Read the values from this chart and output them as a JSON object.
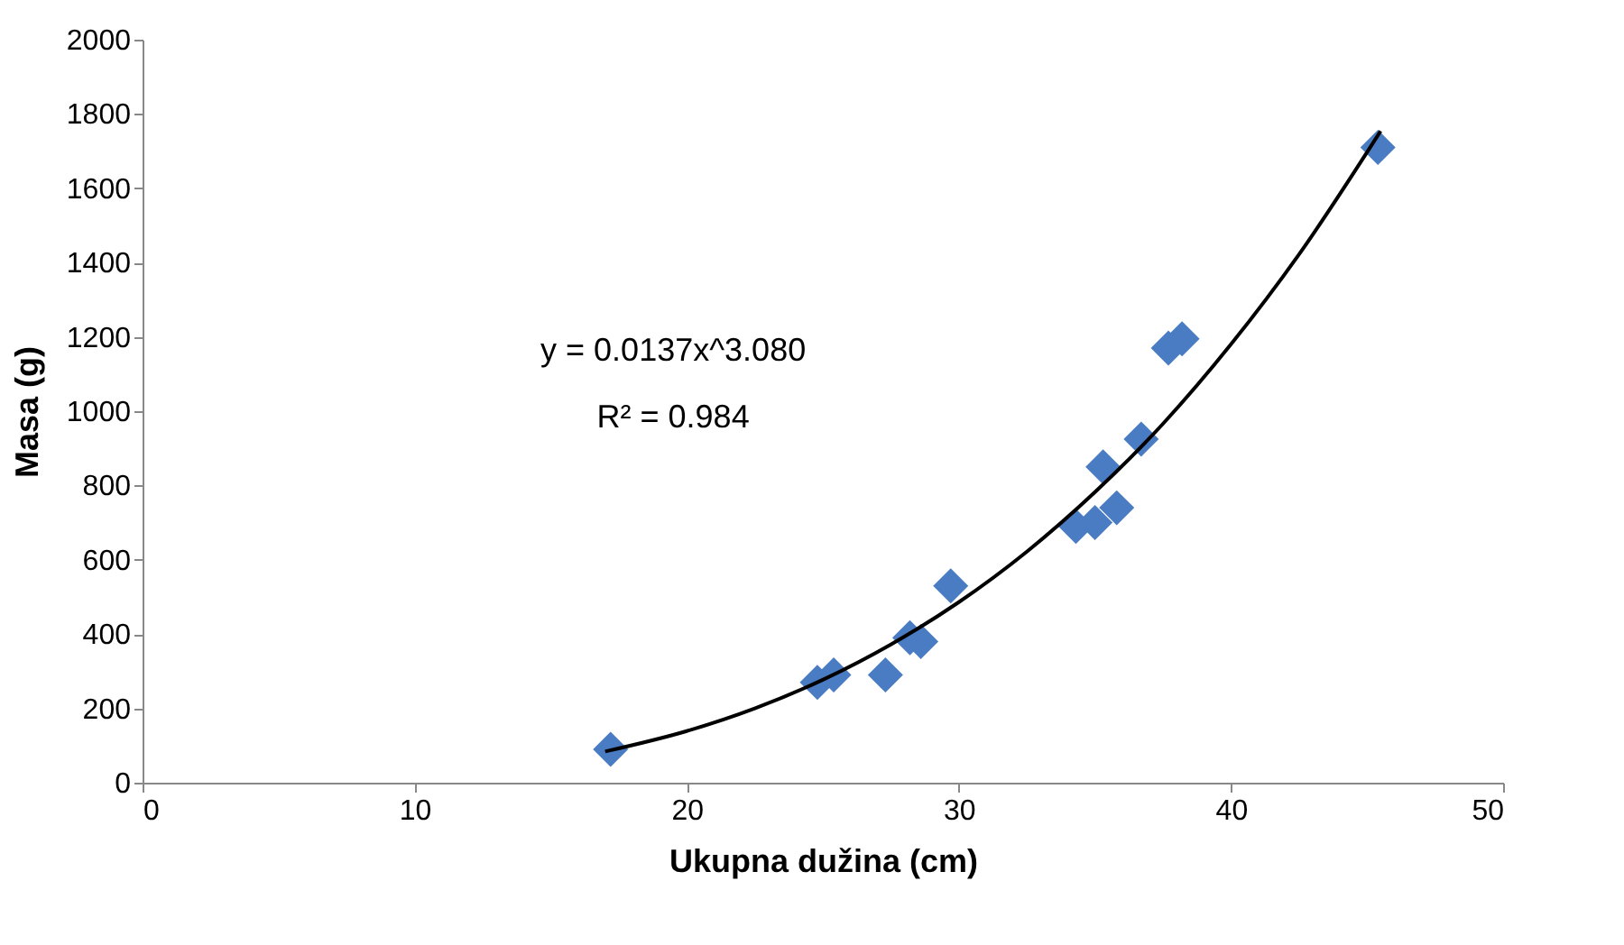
{
  "chart_data": {
    "type": "scatter",
    "xlabel": "Ukupna dužina (cm)",
    "ylabel": "Masa (g)",
    "xlim": [
      0,
      50
    ],
    "xticks": [
      0,
      10,
      20,
      30,
      40,
      50
    ],
    "ylim": [
      0,
      2000
    ],
    "yticks": [
      0,
      200,
      400,
      600,
      800,
      1000,
      1200,
      1400,
      1600,
      1800,
      2000
    ],
    "grid": false,
    "marker": "diamond",
    "series": [
      {
        "color": "#4a7cc4",
        "x": [
          17.2,
          24.8,
          25.4,
          27.3,
          28.2,
          28.6,
          29.7,
          34.3,
          35.0,
          35.3,
          35.8,
          36.7,
          37.7,
          38.2,
          45.4
        ],
        "values": [
          90,
          270,
          290,
          290,
          390,
          380,
          530,
          690,
          700,
          850,
          740,
          925,
          1170,
          1195,
          1710
        ]
      },
      {
        "type": "line",
        "color": "#000000",
        "marker": "none",
        "line_style": "solid",
        "x": [
          17,
          20,
          22.5,
          25,
          27.5,
          30,
          32.5,
          35,
          37.5,
          40,
          42.5,
          45.5
        ],
        "values": [
          84,
          139,
          200,
          277,
          372,
          486,
          622,
          782,
          966,
          1180,
          1422,
          1754
        ]
      }
    ],
    "annotations": [
      "y = 0.0137x^3.080",
      "R² = 0.984"
    ]
  }
}
